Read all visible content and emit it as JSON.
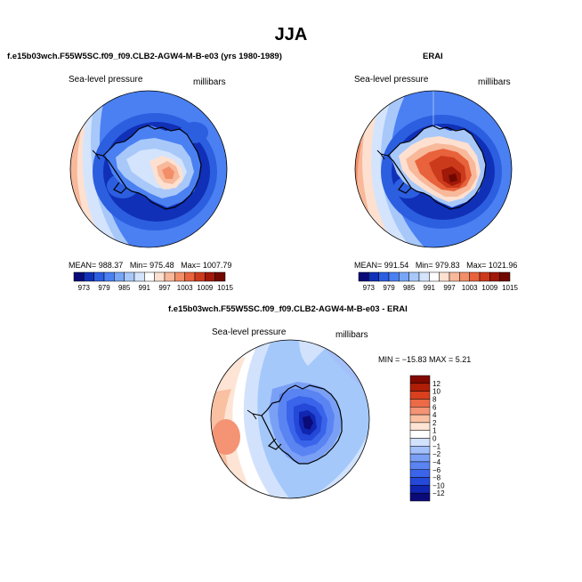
{
  "title": "JJA",
  "panels": {
    "model": {
      "title": "f.e15b03wch.F55W5SC.f09_f09.CLB2-AGW4-M-B-e03 (yrs 1980-1989)",
      "variable_label": "Sea-level pressure",
      "units_label": "millibars",
      "mean_text": "MEAN= 988.37",
      "min_text": "Min= 975.48",
      "max_text": "Max= 1007.79"
    },
    "obs": {
      "title": "ERAI",
      "variable_label": "Sea-level pressure",
      "units_label": "millibars",
      "mean_text": "MEAN= 991.54",
      "min_text": "Min= 979.83",
      "max_text": "Max= 1021.96"
    },
    "diff": {
      "title": "f.e15b03wch.F55W5SC.f09_f09.CLB2-AGW4-M-B-e03 - ERAI",
      "variable_label": "Sea-level pressure",
      "units_label": "millibars",
      "minmax_text": "MIN = −15.83  MAX =   5.21"
    }
  },
  "colorbars": {
    "abs": {
      "colors": [
        "#0a0a78",
        "#1030b8",
        "#2c5ee0",
        "#4a80f2",
        "#78a6f6",
        "#a8c8fa",
        "#d4e4fc",
        "#ffffff",
        "#fde0d0",
        "#f8b89a",
        "#f28e68",
        "#e8623c",
        "#cc3a1c",
        "#a01808",
        "#700800"
      ],
      "tick_labels": [
        "973",
        "979",
        "985",
        "991",
        "997",
        "1003",
        "1009",
        "1015"
      ]
    },
    "diff": {
      "colors": [
        "#0a0a78",
        "#1026b0",
        "#2448d8",
        "#3a64ea",
        "#5a84f2",
        "#7aa0f6",
        "#a4c0fa",
        "#d2e2fc",
        "#ffffff",
        "#fde4d4",
        "#f9c0a2",
        "#f49474",
        "#ec6a46",
        "#d8401e",
        "#b01e08",
        "#800800"
      ],
      "tick_labels": [
        "12",
        "10",
        "8",
        "6",
        "4",
        "2",
        "1",
        "0",
        "−1",
        "−2",
        "−4",
        "−6",
        "−8",
        "−10",
        "−12"
      ]
    }
  }
}
